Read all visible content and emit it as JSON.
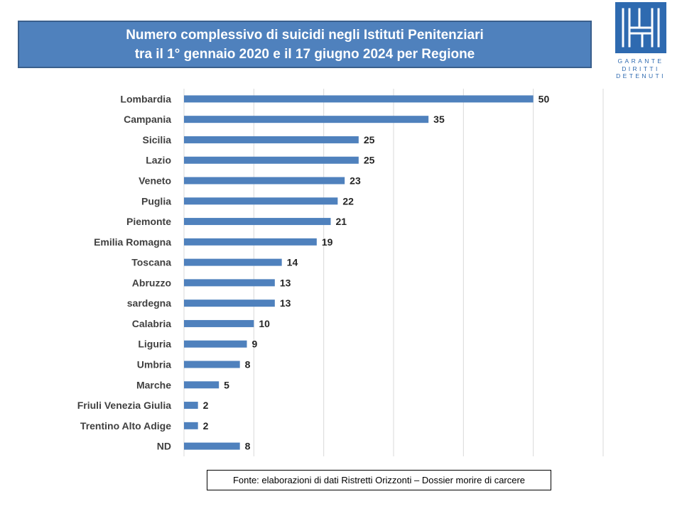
{
  "title": {
    "line1": "Numero complessivo di suicidi  negli Istituti Penitenziari",
    "line2": "tra il 1° gennaio 2020 e il 17  giugno 2024 per Regione"
  },
  "logo": {
    "lines": [
      "GARANTE",
      "DIRITTI",
      "DETENUTI"
    ]
  },
  "source": "Fonte: elaborazioni di dati Ristretti Orizzonti – Dossier morire  di carcere",
  "colors": {
    "bar": "#4f81bd",
    "banner": "#4f81bd",
    "logo": "#2e6ab0",
    "grid": "#d9d9d9"
  },
  "chart_data": {
    "type": "bar",
    "orientation": "horizontal",
    "categories": [
      "Lombardia",
      "Campania",
      "Sicilia",
      "Lazio",
      "Veneto",
      "Puglia",
      "Piemonte",
      "Emilia Romagna",
      "Toscana",
      "Abruzzo",
      "sardegna",
      "Calabria",
      "Liguria",
      "Umbria",
      "Marche",
      "Friuli Venezia Giulia",
      "Trentino Alto Adige",
      "ND"
    ],
    "values": [
      50,
      35,
      25,
      25,
      23,
      22,
      21,
      19,
      14,
      13,
      13,
      10,
      9,
      8,
      5,
      2,
      2,
      8
    ],
    "data_labels": true,
    "xlim": [
      0,
      60
    ],
    "grid": true,
    "legend": "none"
  }
}
